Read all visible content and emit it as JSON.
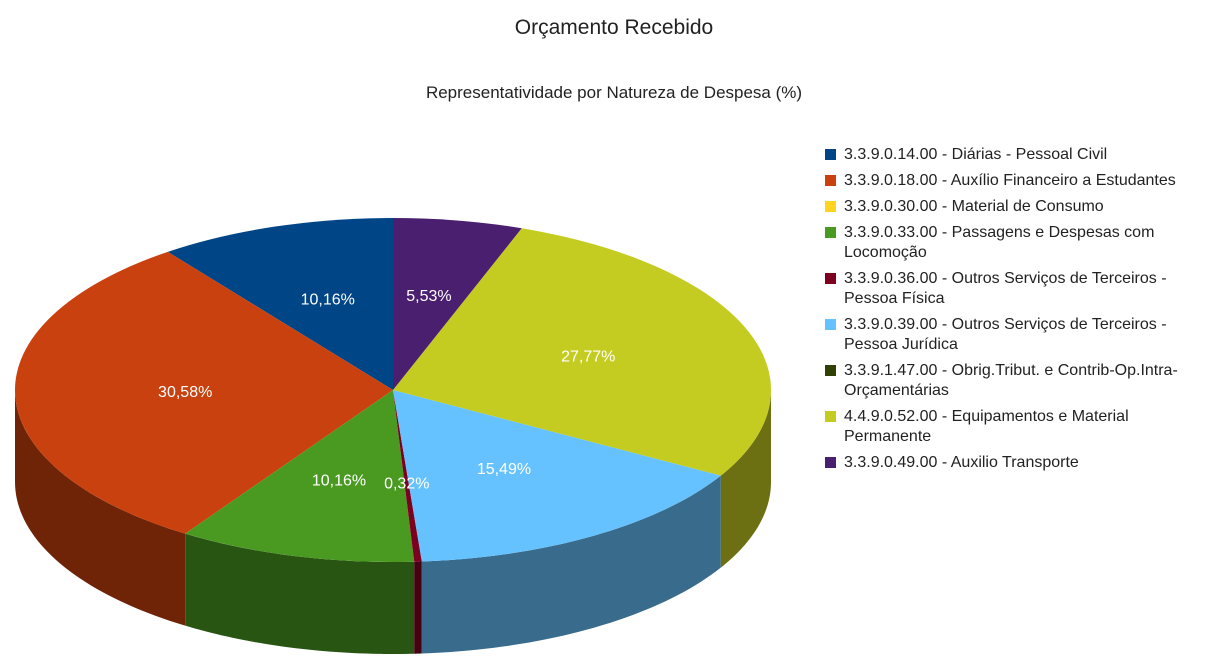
{
  "chart_data": {
    "type": "pie3d",
    "title": "Orçamento Recebido",
    "subtitle": "Representatividade por Natureza de Despesa (%)",
    "categories": [
      "3.3.9.0.14.00 - Diárias - Pessoal Civil",
      "3.3.9.0.18.00 - Auxílio Financeiro a Estudantes",
      "3.3.9.0.30.00 - Material de Consumo",
      "3.3.9.0.33.00 - Passagens e Despesas com Locomoção",
      "3.3.9.0.36.00 - Outros Serviços de Terceiros - Pessoa Física",
      "3.3.9.0.39.00 - Outros Serviços de Terceiros - Pessoa Jurídica",
      "3.3.9.1.47.00 - Obrig.Tribut. e Contrib-Op.Intra-Orçamentárias",
      "4.4.9.0.52.00 - Equipamentos e Material Permanente",
      "3.3.9.0.49.00 - Auxilio Transporte"
    ],
    "values": [
      10.16,
      30.58,
      0,
      10.16,
      0.32,
      15.49,
      0,
      27.77,
      5.53
    ],
    "value_labels": [
      "10,16%",
      "30,58%",
      null,
      "10,16%",
      "0,32%",
      "15,49%",
      null,
      "27,77%",
      "5,53%"
    ],
    "colors": [
      "#004586",
      "#c9410f",
      "#ffd320",
      "#4a9a22",
      "#7e0021",
      "#66c2ff",
      "#314004",
      "#c4cc22",
      "#4b1f6f"
    ],
    "legend": "right"
  }
}
